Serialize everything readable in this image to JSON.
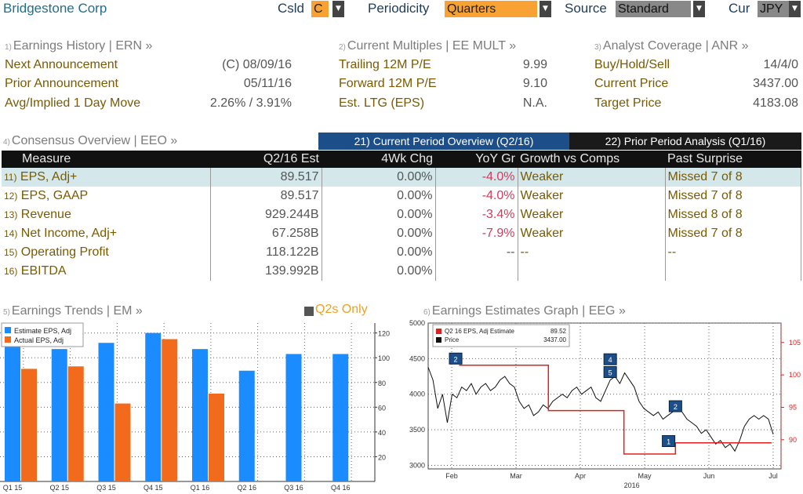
{
  "header": {
    "company": "Bridgestone Corp",
    "csld_label": "Csld",
    "csld_value": "C",
    "periodicity_label": "Periodicity",
    "periodicity_value": "Quarters",
    "source_label": "Source",
    "source_value": "Standard",
    "cur_label": "Cur",
    "cur_value": "JPY"
  },
  "earnings_history": {
    "num": "1)",
    "title": "Earnings History | ERN »",
    "rows": [
      {
        "label": "Next Announcement",
        "value": "(C)  08/09/16"
      },
      {
        "label": "Prior Announcement",
        "value": "05/11/16"
      },
      {
        "label": "Avg/Implied 1 Day Move",
        "value": "2.26% / 3.91%"
      }
    ]
  },
  "current_multiples": {
    "num": "2)",
    "title": "Current Multiples | EE MULT »",
    "rows": [
      {
        "label": "Trailing 12M P/E",
        "value": "9.99"
      },
      {
        "label": "Forward 12M P/E",
        "value": "9.10"
      },
      {
        "label": "Est. LTG (EPS)",
        "value": "N.A."
      }
    ]
  },
  "analyst_coverage": {
    "num": "3)",
    "title": "Analyst Coverage | ANR »",
    "rows": [
      {
        "label": "Buy/Hold/Sell",
        "value": "14/4/0"
      },
      {
        "label": "Current Price",
        "value": "3437.00"
      },
      {
        "label": "Target Price",
        "value": "4183.08"
      }
    ]
  },
  "consensus": {
    "num": "4)",
    "title": "Consensus Overview | EEO »",
    "tab_current": "21) Current Period Overview (Q2/16)",
    "tab_prior": "22) Prior Period Analysis (Q1/16)",
    "columns": [
      "Measure",
      "Q2/16 Est",
      "4Wk Chg",
      "YoY Gr",
      "Growth vs Comps",
      "Past Surprise"
    ],
    "rows": [
      {
        "n": "11)",
        "measure": "EPS, Adj+",
        "est": "89.517",
        "chg": "0.00%",
        "yoy": "-4.0%",
        "growth": "Weaker",
        "surprise": "Missed 7 of 8"
      },
      {
        "n": "12)",
        "measure": "EPS, GAAP",
        "est": "89.517",
        "chg": "0.00%",
        "yoy": "-4.0%",
        "growth": "Weaker",
        "surprise": "Missed 7 of 8"
      },
      {
        "n": "13)",
        "measure": "Revenue",
        "est": "929.244B",
        "chg": "0.00%",
        "yoy": "-3.4%",
        "growth": "Weaker",
        "surprise": "Missed 8 of 8"
      },
      {
        "n": "14)",
        "measure": "Net Income, Adj+",
        "est": "67.258B",
        "chg": "0.00%",
        "yoy": "-7.9%",
        "growth": "Weaker",
        "surprise": "Missed 7 of 8"
      },
      {
        "n": "15)",
        "measure": "Operating Profit",
        "est": "118.122B",
        "chg": "0.00%",
        "yoy": "--",
        "growth": "--",
        "surprise": "--"
      },
      {
        "n": "16)",
        "measure": "EBITDA",
        "est": "139.992B",
        "chg": "0.00%",
        "yoy": "",
        "growth": "",
        "surprise": ""
      }
    ]
  },
  "earnings_trends": {
    "num": "5)",
    "title": "Earnings Trends | EM »",
    "toggle_label": "Q2s Only"
  },
  "earnings_graph": {
    "num": "6)",
    "title": "Earnings Estimates Graph | EEG »"
  },
  "chart_data": [
    {
      "type": "bar",
      "categories": [
        "Q1 15",
        "Q2 15",
        "Q3 15",
        "Q4 15",
        "Q1 16",
        "Q2 16",
        "Q3 16",
        "Q4 16"
      ],
      "series": [
        {
          "name": "Estimate EPS, Adj",
          "color": "#1a8cff",
          "values": [
            109,
            107,
            112,
            120,
            107,
            89.5,
            103,
            103
          ]
        },
        {
          "name": "Actual EPS, Adj",
          "color": "#f26b1d",
          "values": [
            91,
            93,
            63,
            115,
            71,
            null,
            null,
            null
          ]
        }
      ],
      "ylim": [
        0,
        128
      ],
      "yticks": [
        20,
        40,
        60,
        80,
        100,
        120
      ],
      "legend": "top-left",
      "grid": true
    },
    {
      "type": "line",
      "legend_items": [
        {
          "name": "Q2 16 EPS, Adj Estimate",
          "value": "89.52",
          "color": "#e0201e"
        },
        {
          "name": "Price",
          "value": "3437.00",
          "color": "#111111"
        }
      ],
      "x_labels": [
        "Feb",
        "Mar",
        "Apr",
        "May",
        "Jun",
        "Jul"
      ],
      "x_year": "2016",
      "left_ticks": [
        3000,
        3500,
        4000,
        4500,
        5000
      ],
      "right_ticks": [
        90,
        95,
        100,
        105
      ],
      "price_series": [
        4380,
        4200,
        3800,
        4000,
        3600,
        4000,
        3950,
        4100,
        4050,
        4150,
        4000,
        4100,
        4150,
        4050,
        4100,
        4200,
        4250,
        4150,
        4100,
        3900,
        3800,
        3850,
        3700,
        3750,
        3850,
        3800,
        3900,
        3950,
        4000,
        3950,
        4050,
        4100,
        4000,
        4050,
        4100,
        3950,
        3900,
        4050,
        4200,
        4250,
        4150,
        4300,
        4200,
        4100,
        3900,
        3800,
        3750,
        3700,
        3750,
        3650,
        3700,
        3750,
        3800,
        3750,
        3650,
        3600,
        3550,
        3450,
        3500,
        3400,
        3300,
        3350,
        3250,
        3300,
        3200,
        3350,
        3550,
        3650,
        3700,
        3650,
        3700,
        3650,
        3437
      ],
      "estimate_steps": [
        {
          "x": 0.09,
          "y": 101.5
        },
        {
          "x": 0.35,
          "y": 101.5
        },
        {
          "x": 0.35,
          "y": 94.5
        },
        {
          "x": 0.57,
          "y": 94.5
        },
        {
          "x": 0.57,
          "y": 87.8
        },
        {
          "x": 0.72,
          "y": 87.8
        },
        {
          "x": 0.72,
          "y": 89.52
        },
        {
          "x": 1.0,
          "y": 89.52
        }
      ],
      "markers": [
        {
          "label": "2",
          "x": 0.08,
          "y": 4490
        },
        {
          "label": "4",
          "x": 0.53,
          "y": 4480
        },
        {
          "label": "5",
          "x": 0.53,
          "y": 4300
        },
        {
          "label": "2",
          "x": 0.72,
          "y": 3820
        },
        {
          "label": "1",
          "x": 0.7,
          "y": 3330
        }
      ]
    }
  ]
}
